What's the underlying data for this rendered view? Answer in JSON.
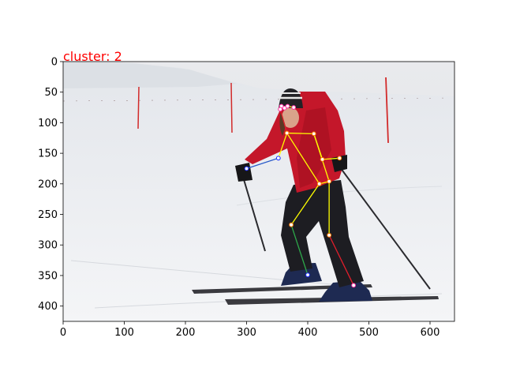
{
  "title": "cluster: 2",
  "colors": {
    "title": "#ff0000",
    "axes": "#000000",
    "snow": "#eef0f3",
    "sky": "#e4e6ea",
    "jacket": "#c4172a",
    "pants": "#1d1d22",
    "limb_main": "#ffff00",
    "limb_left_leg": "#2ea84a",
    "limb_right_leg": "#e11e2b",
    "limb_arm": "#2456c8",
    "joint_face": "#ff2aa0",
    "joint_torso": "#ff7a00",
    "joint_blue": "#1a2bff"
  },
  "image": {
    "width": 640,
    "height": 425
  },
  "x_axis": {
    "ticks": [
      "0",
      "100",
      "200",
      "300",
      "400",
      "500",
      "600"
    ]
  },
  "y_axis": {
    "ticks": [
      "0",
      "50",
      "100",
      "150",
      "200",
      "250",
      "300",
      "350",
      "400"
    ]
  },
  "keypoints": [
    {
      "name": "nose",
      "x": 362,
      "y": 76,
      "group": "face"
    },
    {
      "name": "left-eye",
      "x": 367,
      "y": 73,
      "group": "face"
    },
    {
      "name": "right-eye",
      "x": 357,
      "y": 73,
      "group": "face"
    },
    {
      "name": "left-ear",
      "x": 377,
      "y": 75,
      "group": "face"
    },
    {
      "name": "right-ear",
      "x": 355,
      "y": 78,
      "group": "face"
    },
    {
      "name": "left-shoulder",
      "x": 410,
      "y": 118,
      "group": "torso"
    },
    {
      "name": "right-shoulder",
      "x": 366,
      "y": 117,
      "group": "torso"
    },
    {
      "name": "left-elbow",
      "x": 424,
      "y": 160,
      "group": "torso"
    },
    {
      "name": "right-elbow",
      "x": 352,
      "y": 158,
      "group": "blue"
    },
    {
      "name": "left-wrist",
      "x": 452,
      "y": 158,
      "group": "torso"
    },
    {
      "name": "right-wrist",
      "x": 300,
      "y": 175,
      "group": "blue"
    },
    {
      "name": "left-hip",
      "x": 435,
      "y": 196,
      "group": "torso"
    },
    {
      "name": "right-hip",
      "x": 419,
      "y": 200,
      "group": "torso"
    },
    {
      "name": "left-knee",
      "x": 435,
      "y": 284,
      "group": "torso"
    },
    {
      "name": "right-knee",
      "x": 373,
      "y": 267,
      "group": "torso"
    },
    {
      "name": "left-ankle",
      "x": 475,
      "y": 366,
      "group": "face"
    },
    {
      "name": "right-ankle",
      "x": 400,
      "y": 349,
      "group": "blue"
    }
  ],
  "skeleton": [
    {
      "from": "nose",
      "to": "left-eye",
      "color": "limb_main"
    },
    {
      "from": "nose",
      "to": "right-eye",
      "color": "limb_main"
    },
    {
      "from": "left-eye",
      "to": "left-ear",
      "color": "limb_main"
    },
    {
      "from": "right-eye",
      "to": "right-ear",
      "color": "limb_main"
    },
    {
      "from": "right-ear",
      "to": "right-shoulder",
      "color": "limb_right_leg"
    },
    {
      "from": "left-shoulder",
      "to": "right-shoulder",
      "color": "limb_main"
    },
    {
      "from": "left-shoulder",
      "to": "left-elbow",
      "color": "limb_main"
    },
    {
      "from": "left-elbow",
      "to": "left-wrist",
      "color": "limb_main"
    },
    {
      "from": "right-shoulder",
      "to": "right-elbow",
      "color": "limb_main"
    },
    {
      "from": "right-elbow",
      "to": "right-wrist",
      "color": "limb_arm"
    },
    {
      "from": "left-shoulder",
      "to": "left-hip",
      "color": "limb_main"
    },
    {
      "from": "right-shoulder",
      "to": "right-hip",
      "color": "limb_main"
    },
    {
      "from": "left-hip",
      "to": "right-hip",
      "color": "limb_main"
    },
    {
      "from": "left-hip",
      "to": "left-knee",
      "color": "limb_main"
    },
    {
      "from": "right-hip",
      "to": "right-knee",
      "color": "limb_main"
    },
    {
      "from": "left-knee",
      "to": "left-ankle",
      "color": "limb_right_leg"
    },
    {
      "from": "right-knee",
      "to": "right-ankle",
      "color": "limb_left_leg"
    }
  ]
}
